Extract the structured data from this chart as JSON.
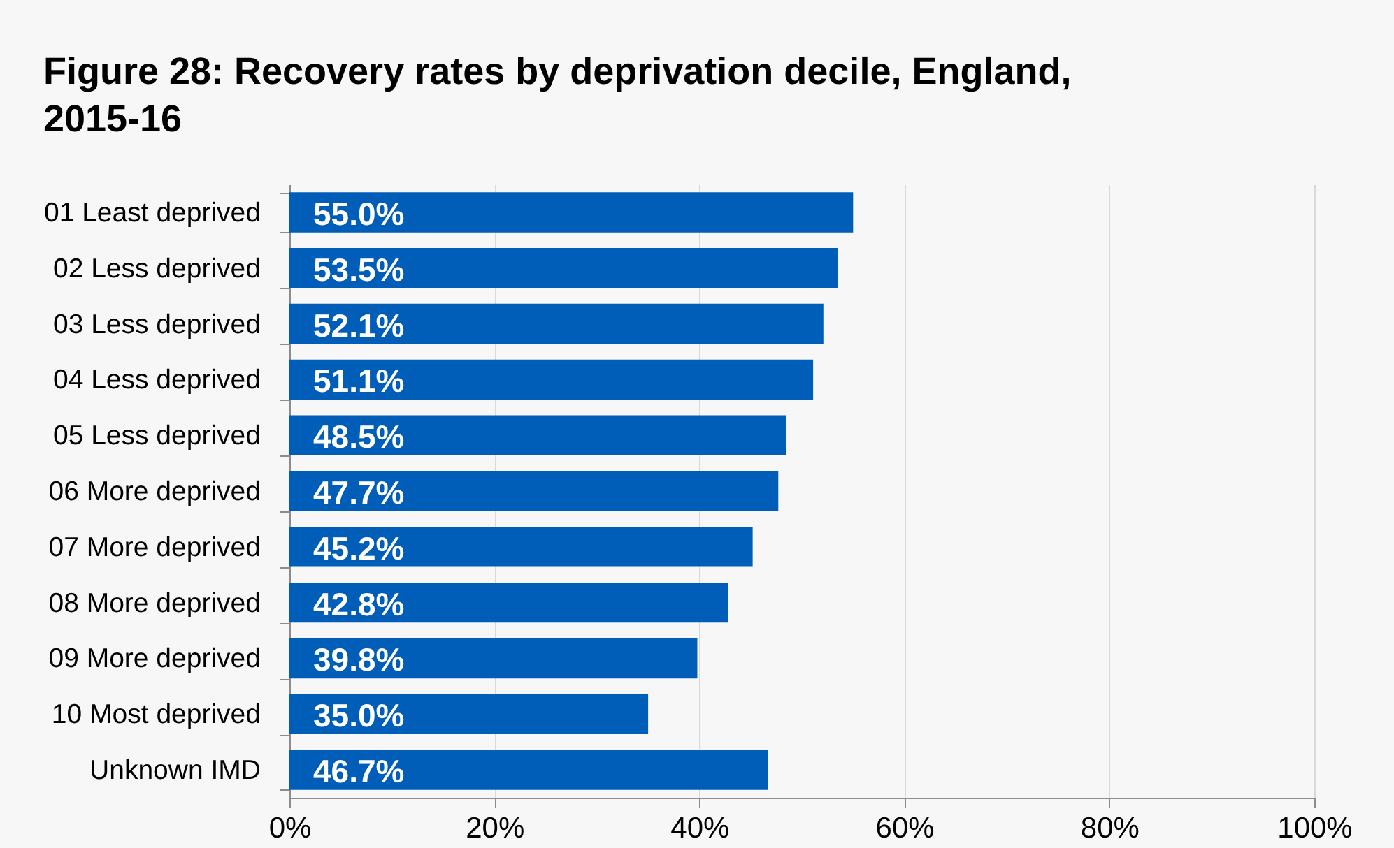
{
  "chart_data": {
    "type": "bar",
    "orientation": "horizontal",
    "title": "Figure 28: Recovery rates by deprivation decile, England, 2015-16",
    "categories": [
      "01 Least deprived",
      "02 Less deprived",
      "03 Less deprived",
      "04 Less deprived",
      "05 Less deprived",
      "06 More deprived",
      "07 More deprived",
      "08 More deprived",
      "09 More deprived",
      "10 Most deprived",
      "Unknown IMD"
    ],
    "values": [
      55.0,
      53.5,
      52.1,
      51.1,
      48.5,
      47.7,
      45.2,
      42.8,
      39.8,
      35.0,
      46.7
    ],
    "value_labels": [
      "55.0%",
      "53.5%",
      "52.1%",
      "51.1%",
      "48.5%",
      "47.7%",
      "45.2%",
      "42.8%",
      "39.8%",
      "35.0%",
      "46.7%"
    ],
    "color": "#005eb8",
    "xlim": [
      0,
      100
    ],
    "xticks": [
      {
        "value": 0,
        "label": "0%"
      },
      {
        "value": 20,
        "label": "20%"
      },
      {
        "value": 40,
        "label": "40%"
      },
      {
        "value": 60,
        "label": "60%"
      },
      {
        "value": 80,
        "label": "80%"
      },
      {
        "value": 100,
        "label": "100%"
      }
    ],
    "grid": "x"
  }
}
